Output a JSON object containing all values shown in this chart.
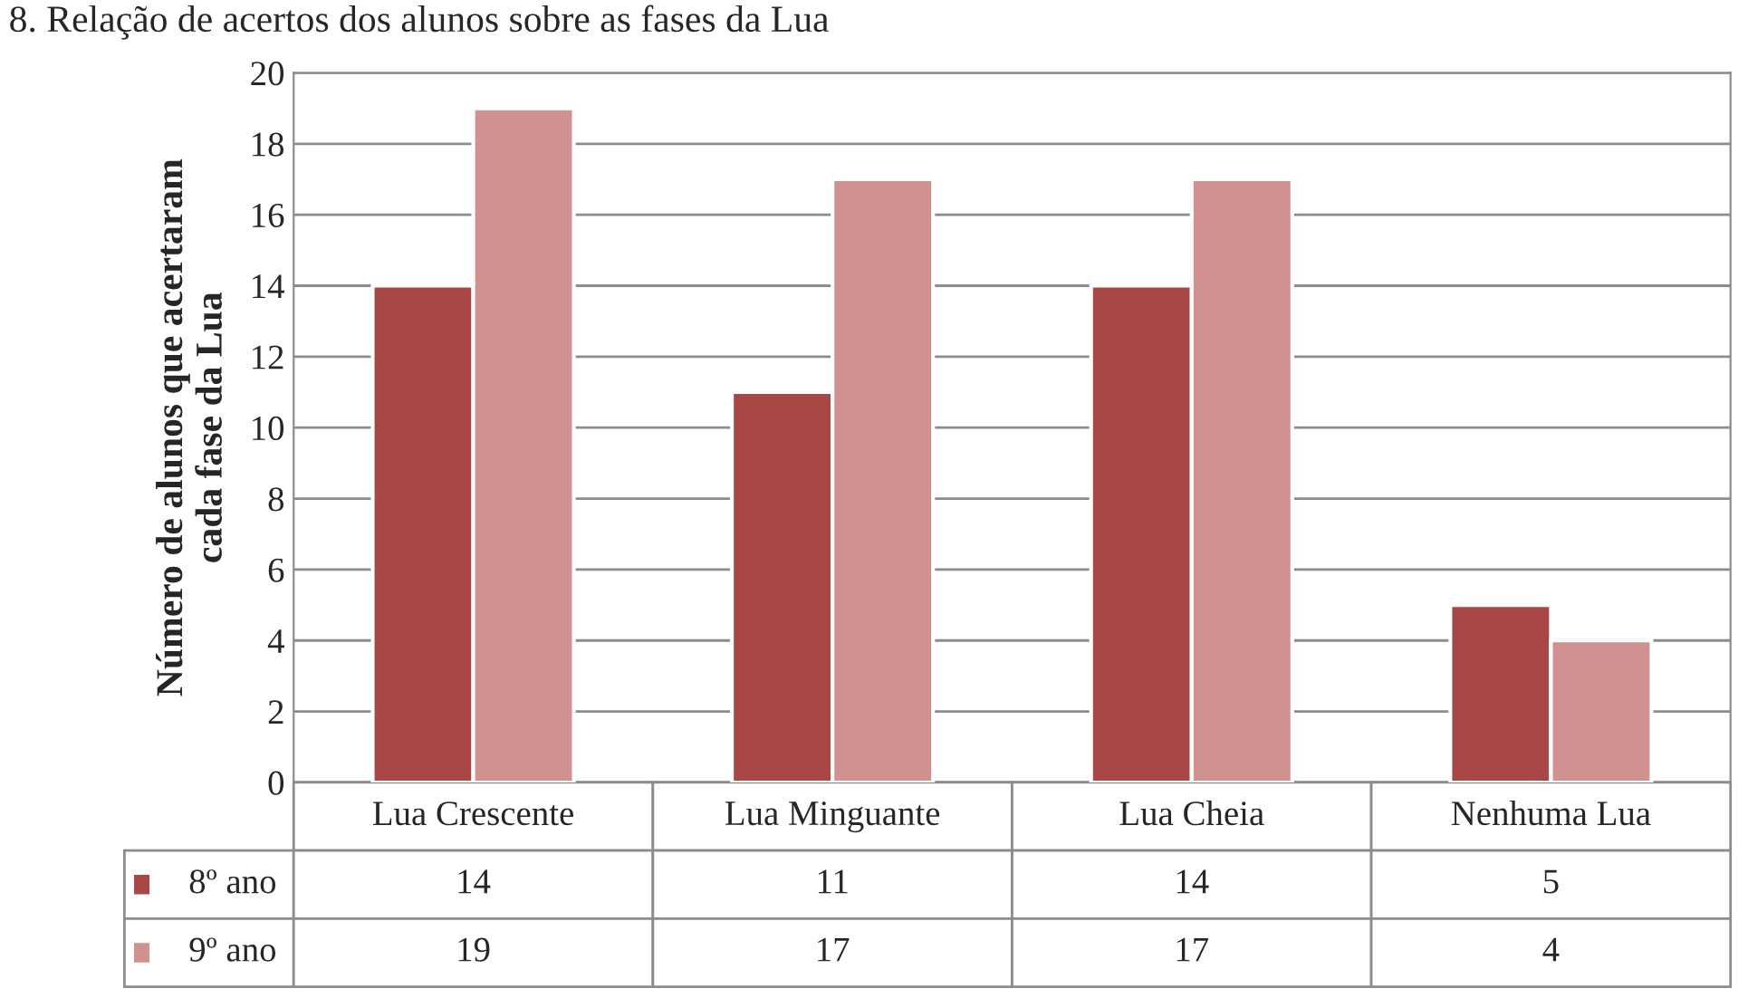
{
  "chart_data": {
    "type": "bar",
    "title": "8. Relação de acertos dos alunos sobre as fases da Lua",
    "ylabel": "Número de alunos que acertaram\ncada fase da Lua",
    "categories": [
      "Lua Crescente",
      "Lua Minguante",
      "Lua Cheia",
      "Nenhuma Lua"
    ],
    "series": [
      {
        "name": "8º ano",
        "color": "#a84745",
        "values": [
          14,
          11,
          14,
          5
        ]
      },
      {
        "name": "9º ano",
        "color": "#d09190",
        "values": [
          19,
          17,
          17,
          4
        ]
      }
    ],
    "ylim": [
      0,
      20
    ],
    "yticks": [
      0,
      2,
      4,
      6,
      8,
      10,
      12,
      14,
      16,
      18,
      20
    ],
    "grid": "y",
    "legend": "bottom",
    "data_labels": true
  }
}
